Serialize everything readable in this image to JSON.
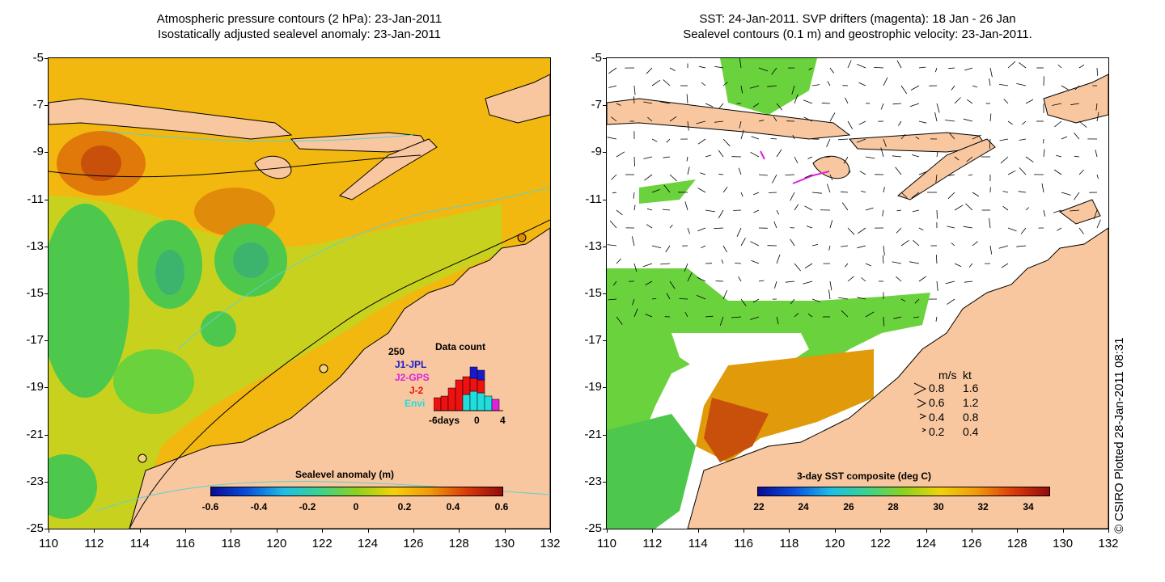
{
  "left_panel": {
    "title_line1": "Atmospheric pressure contours (2 hPa): 23-Jan-2011",
    "title_line2": "Isostatically adjusted sealevel anomaly: 23-Jan-2011",
    "colorbar_label": "Sealevel anomaly (m)",
    "colorbar_ticks": [
      "-0.6",
      "-0.4",
      "-0.2",
      "0",
      "0.2",
      "0.4",
      "0.6"
    ],
    "data_count": {
      "title": "Data count",
      "ymax_label": "250",
      "series": [
        "J1-JPL",
        "J2-GPS",
        "J-2",
        "Envi"
      ],
      "series_colors": [
        "#1a1acc",
        "#dd22dd",
        "#ee1111",
        "#22dddd"
      ],
      "x_labels": [
        "-6days",
        "0",
        "4"
      ]
    }
  },
  "right_panel": {
    "title_line1": "SST: 24-Jan-2011. SVP drifters (magenta): 18 Jan - 26 Jan",
    "title_line2": "Sealevel contours (0.1 m) and geostrophic velocity: 23-Jan-2011.",
    "colorbar_label": "3-day SST composite (deg C)",
    "colorbar_ticks": [
      "22",
      "24",
      "26",
      "28",
      "30",
      "32",
      "34"
    ],
    "velocity_legend": {
      "header_ms": "m/s",
      "header_kt": "kt",
      "rows": [
        {
          "ms": "0.8",
          "kt": "1.6"
        },
        {
          "ms": "0.6",
          "kt": "1.2"
        },
        {
          "ms": "0.4",
          "kt": "0.8"
        },
        {
          "ms": "0.2",
          "kt": "0.4"
        }
      ]
    }
  },
  "y_ticks": [
    "-5",
    "-7",
    "-9",
    "-11",
    "-13",
    "-15",
    "-17",
    "-19",
    "-21",
    "-23",
    "-25"
  ],
  "x_ticks": [
    "110",
    "112",
    "114",
    "116",
    "118",
    "120",
    "122",
    "124",
    "126",
    "128",
    "130",
    "132"
  ],
  "credit": "© CSIRO Plotted 28-Jan-2011 08:31",
  "colors": {
    "land": "#f8c79f",
    "sea_orange": "#f2b80f",
    "sea_green": "#4dc84d",
    "sea_yellow": "#c8d21e",
    "sst_white": "#ffffff",
    "sst_green": "#6ad23c",
    "sst_hot": "#c8500a",
    "bathymetry": "#5ad2d2"
  }
}
